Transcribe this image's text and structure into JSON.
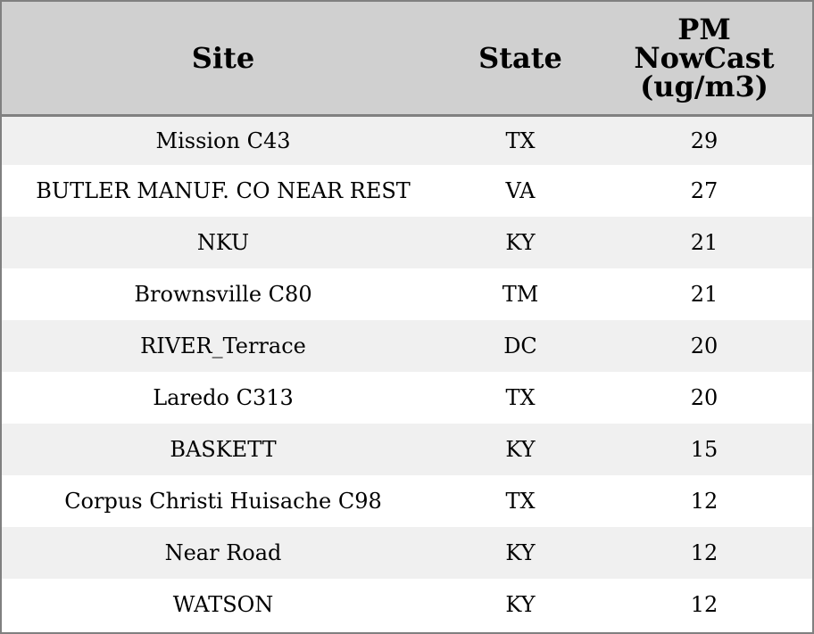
{
  "chart_data": {
    "type": "table",
    "columns": [
      "Site",
      "State",
      "PM NowCast (ug/m3)"
    ],
    "rows": [
      {
        "site": "Mission C43",
        "state": "TX",
        "pm": "29"
      },
      {
        "site": "BUTLER MANUF. CO NEAR REST",
        "state": "VA",
        "pm": "27"
      },
      {
        "site": "NKU",
        "state": "KY",
        "pm": "21"
      },
      {
        "site": "Brownsville C80",
        "state": "TM",
        "pm": "21"
      },
      {
        "site": "RIVER_Terrace",
        "state": "DC",
        "pm": "20"
      },
      {
        "site": "Laredo C313",
        "state": "TX",
        "pm": "20"
      },
      {
        "site": "BASKETT",
        "state": "KY",
        "pm": "15"
      },
      {
        "site": "Corpus Christi Huisache C98",
        "state": "TX",
        "pm": "12"
      },
      {
        "site": "Near Road",
        "state": "KY",
        "pm": "12"
      },
      {
        "site": "WATSON",
        "state": "KY",
        "pm": "12"
      }
    ],
    "header_colors": {
      "background": "#d0d0d0",
      "border": "#808080"
    },
    "row_colors": [
      "#f0f0f0",
      "#ffffff"
    ]
  },
  "header": {
    "site": "Site",
    "state": "State",
    "pm_lines": [
      "PM",
      "NowCast",
      "(ug/m3)"
    ]
  }
}
